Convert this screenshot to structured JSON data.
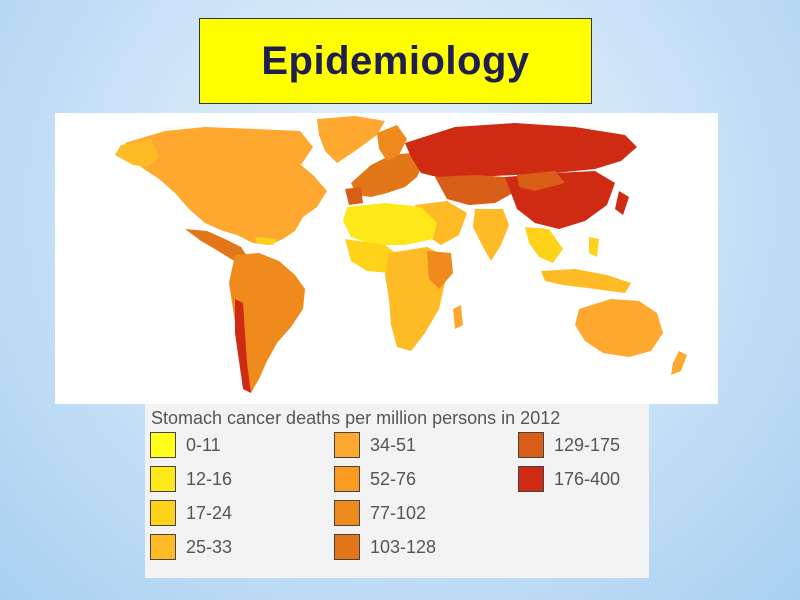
{
  "slide": {
    "title": "Epidemiology"
  },
  "map": {
    "colors": {
      "land_default": "#f6a52b",
      "water": "#ffffff"
    }
  },
  "legend": {
    "title": "Stomach cancer deaths per million persons in 2012",
    "items": [
      {
        "label": "0-11",
        "color": "#ffff1a"
      },
      {
        "label": "12-16",
        "color": "#ffe81a"
      },
      {
        "label": "17-24",
        "color": "#ffd21a"
      },
      {
        "label": "25-33",
        "color": "#ffbb25"
      },
      {
        "label": "34-51",
        "color": "#ffa830"
      },
      {
        "label": "52-76",
        "color": "#fa9c22"
      },
      {
        "label": "77-102",
        "color": "#ef8a1c"
      },
      {
        "label": "103-128",
        "color": "#e4761a"
      },
      {
        "label": "129-175",
        "color": "#d85e18"
      },
      {
        "label": "176-400",
        "color": "#cf2a12"
      }
    ]
  }
}
